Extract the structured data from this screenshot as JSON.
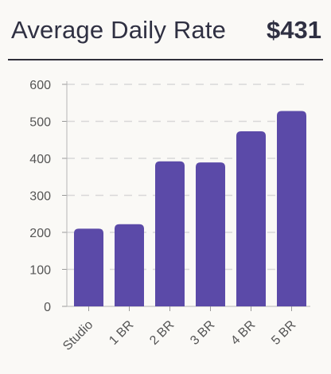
{
  "header": {
    "title": "Average Daily Rate",
    "value": "$431"
  },
  "chart_data": {
    "type": "bar",
    "categories": [
      "Studio",
      "1 BR",
      "2 BR",
      "3 BR",
      "4 BR",
      "5 BR"
    ],
    "values": [
      210,
      222,
      392,
      389,
      473,
      528
    ],
    "ylim": [
      0,
      600
    ],
    "yticks": [
      0,
      100,
      200,
      300,
      400,
      500,
      600
    ],
    "grid": true,
    "bar_color": "#5b4aa8",
    "grid_color": "#d8d8d8"
  }
}
